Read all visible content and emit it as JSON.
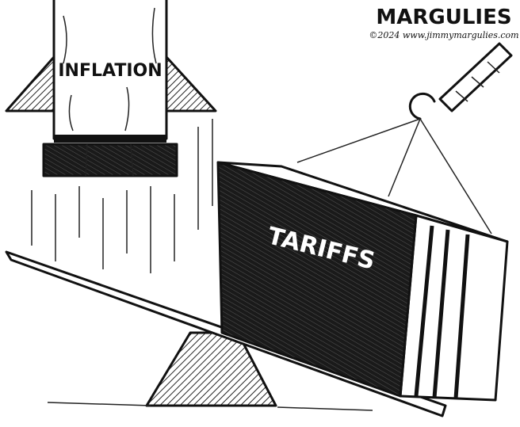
{
  "signature": {
    "artist": "MARGULIES",
    "copyright": "©2024 www.jimmymargulies.com"
  },
  "labels": {
    "rocket": "INFLATION",
    "crate": "TARIFFS"
  }
}
